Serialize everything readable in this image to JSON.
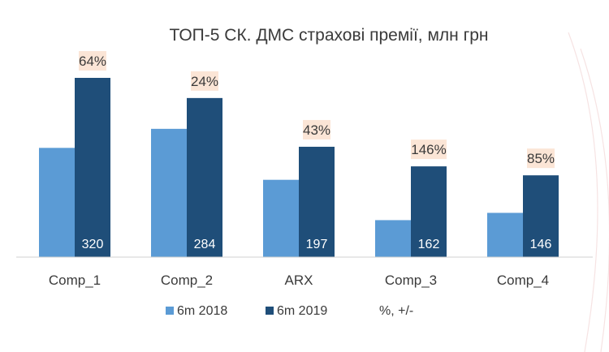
{
  "chart_data": {
    "type": "bar",
    "title": "ТОП-5 СК. ДМС страхові премії, млн грн",
    "xlabel": "",
    "ylabel": "",
    "ylim": [
      0,
      350
    ],
    "grid": false,
    "legend_position": "bottom",
    "categories": [
      "Comp_1",
      "Comp_2",
      "ARX",
      "Comp_3",
      "Comp_4"
    ],
    "series": [
      {
        "name": "6m 2018",
        "color": "#5b9bd5",
        "values": [
          195,
          229,
          138,
          66,
          79
        ]
      },
      {
        "name": "6m 2019",
        "color": "#1f4e79",
        "values": [
          320,
          284,
          197,
          162,
          146
        ],
        "data_labels": [
          "320",
          "284",
          "197",
          "162",
          "146"
        ]
      }
    ],
    "change_series": {
      "name": "%, +/-",
      "label_background": "#fbe5d6",
      "values": [
        64,
        24,
        43,
        146,
        85
      ],
      "labels": [
        "64%",
        "24%",
        "43%",
        "146%",
        "85%"
      ]
    }
  }
}
